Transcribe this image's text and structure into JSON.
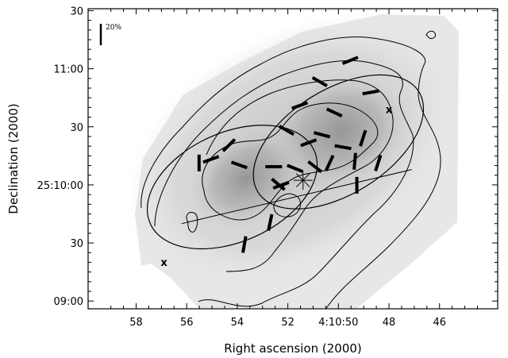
{
  "chart_data": {
    "type": "polarization-map",
    "xlabel": "Right ascension (2000)",
    "ylabel": "Declination (2000)",
    "x_ticks": [
      {
        "ra_s": 58,
        "label": "58"
      },
      {
        "ra_s": 56,
        "label": "56"
      },
      {
        "ra_s": 54,
        "label": "54"
      },
      {
        "ra_s": 52,
        "label": "52"
      },
      {
        "ra_s": 50,
        "label": "4:10:50"
      },
      {
        "ra_s": 48,
        "label": "48"
      },
      {
        "ra_s": 46,
        "label": "46"
      }
    ],
    "y_ticks": [
      {
        "dec_s": 30,
        "label": "30"
      },
      {
        "dec_s": 0,
        "label": "09:00"
      },
      {
        "dec_s": 60,
        "label": "25:10:00"
      },
      {
        "dec_s": 90,
        "label": "30"
      },
      {
        "dec_s": 120,
        "label": "11:00"
      },
      {
        "dec_s": 150,
        "label": "30"
      }
    ],
    "x_range_ra_s": [
      59.9,
      43.7
    ],
    "y_range_dec_s_after_09_00": [
      -4,
      151
    ],
    "scale_bar_label": "20%",
    "cross_labels": [
      {
        "text": "x",
        "ra_s": 48.0,
        "dec_s": 98.8
      },
      {
        "text": "x",
        "ra_s": 56.9,
        "dec_s": 19.8
      }
    ],
    "source_star": {
      "ra_s": 51.4,
      "dec_s": 62.4
    },
    "outflow_axis": {
      "start": [
        56.2,
        40.0
      ],
      "end": [
        47.1,
        67.9
      ]
    },
    "ellipses": [
      {
        "center": [
          54.2,
          58.9
        ],
        "rx_s": 3.55,
        "ry_s": 28.2,
        "angle_deg": -24
      },
      {
        "center": [
          50.0,
          82.2
        ],
        "rx_s": 3.75,
        "ry_s": 27.0,
        "angle_deg": -32
      }
    ],
    "polarization_vectors": [
      {
        "ra_s": 49.53,
        "dec_s": 124.3,
        "pa_deg": 22
      },
      {
        "ra_s": 48.72,
        "dec_s": 107.8,
        "pa_deg": 10
      },
      {
        "ra_s": 50.74,
        "dec_s": 113.3,
        "pa_deg": -30
      },
      {
        "ra_s": 51.53,
        "dec_s": 101.0,
        "pa_deg": 20
      },
      {
        "ra_s": 50.16,
        "dec_s": 97.4,
        "pa_deg": -25
      },
      {
        "ra_s": 52.05,
        "dec_s": 88.2,
        "pa_deg": -30
      },
      {
        "ra_s": 51.18,
        "dec_s": 81.8,
        "pa_deg": 20
      },
      {
        "ra_s": 50.65,
        "dec_s": 85.9,
        "pa_deg": -15
      },
      {
        "ra_s": 49.82,
        "dec_s": 79.5,
        "pa_deg": -10
      },
      {
        "ra_s": 49.03,
        "dec_s": 84.1,
        "pa_deg": 72
      },
      {
        "ra_s": 48.43,
        "dec_s": 71.3,
        "pa_deg": 72
      },
      {
        "ra_s": 49.35,
        "dec_s": 72.2,
        "pa_deg": 85
      },
      {
        "ra_s": 50.35,
        "dec_s": 71.3,
        "pa_deg": 65
      },
      {
        "ra_s": 51.72,
        "dec_s": 68.5,
        "pa_deg": -22
      },
      {
        "ra_s": 50.93,
        "dec_s": 69.4,
        "pa_deg": -38
      },
      {
        "ra_s": 52.56,
        "dec_s": 69.4,
        "pa_deg": 0
      },
      {
        "ra_s": 53.92,
        "dec_s": 70.3,
        "pa_deg": -20
      },
      {
        "ra_s": 55.51,
        "dec_s": 71.3,
        "pa_deg": 90
      },
      {
        "ra_s": 54.33,
        "dec_s": 80.5,
        "pa_deg": 45
      },
      {
        "ra_s": 55.04,
        "dec_s": 73.2,
        "pa_deg": 20
      },
      {
        "ra_s": 52.38,
        "dec_s": 60.3,
        "pa_deg": -40
      },
      {
        "ra_s": 52.27,
        "dec_s": 59.8,
        "pa_deg": 20
      },
      {
        "ra_s": 49.27,
        "dec_s": 59.8,
        "pa_deg": 90
      },
      {
        "ra_s": 52.7,
        "dec_s": 40.6,
        "pa_deg": 78
      },
      {
        "ra_s": 53.72,
        "dec_s": 29.2,
        "pa_deg": 80
      }
    ],
    "scale": {
      "percent": 20
    },
    "grid": false,
    "legend": "none"
  }
}
